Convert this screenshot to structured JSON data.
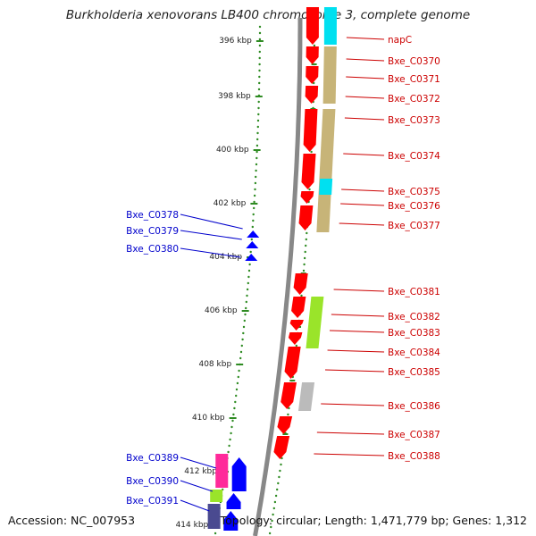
{
  "title": "Burkholderia xenovorans LB400 chromosome 3, complete genome",
  "accession_text": "Accession: NC_007953",
  "topology_text": "Topology: circular; Length: 1,471,779 bp; Genes: 1,312",
  "scale_labels": [
    "396 kbp",
    "398 kbp",
    "400 kbp",
    "402 kbp",
    "404 kbp",
    "406 kbp",
    "408 kbp",
    "410 kbp",
    "412 kbp",
    "414 kbp"
  ],
  "colors": {
    "forward_gene": "#ff0000",
    "reverse_gene": "#0000ff",
    "forward_label": "#cc0000",
    "reverse_label": "#0000cc",
    "backbone": "#888888",
    "scale_ticks": "#2e8b22",
    "cog_cyan": "#00e0f0",
    "cog_tan": "#c7b478",
    "cog_lime": "#9ae42a",
    "cog_grey": "#bbbbbb",
    "cog_magenta": "#ff2a9a",
    "cog_navy": "#4a4a90"
  },
  "forward_genes": [
    "napC",
    "Bxe_C0370",
    "Bxe_C0371",
    "Bxe_C0372",
    "Bxe_C0373",
    "Bxe_C0374",
    "Bxe_C0375",
    "Bxe_C0376",
    "Bxe_C0377",
    "Bxe_C0381",
    "Bxe_C0382",
    "Bxe_C0383",
    "Bxe_C0384",
    "Bxe_C0385",
    "Bxe_C0386",
    "Bxe_C0387",
    "Bxe_C0388"
  ],
  "reverse_genes": [
    "Bxe_C0378",
    "Bxe_C0379",
    "Bxe_C0380",
    "Bxe_C0389",
    "Bxe_C0390",
    "Bxe_C0391"
  ]
}
